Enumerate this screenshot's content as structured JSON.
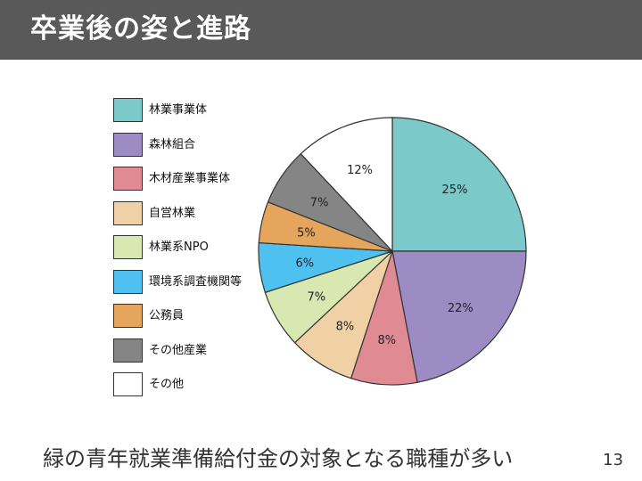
{
  "slide": {
    "title": "卒業後の姿と進路",
    "caption": "緑の青年就業準備給付金の対象となる職種が多い",
    "page_number": "13"
  },
  "chart_data": {
    "type": "pie",
    "title": "",
    "slices": [
      {
        "label": "林業事業体",
        "value": 25,
        "display": "25%",
        "color": "#7cc9c9"
      },
      {
        "label": "森林組合",
        "value": 22,
        "display": "22%",
        "color": "#9d8cc4"
      },
      {
        "label": "木材産業事業体",
        "value": 8,
        "display": "8%",
        "color": "#e08a94"
      },
      {
        "label": "自営林業",
        "value": 8,
        "display": "8%",
        "color": "#f0d1a6"
      },
      {
        "label": "林業系NPO",
        "value": 7,
        "display": "7%",
        "color": "#d7e8b0"
      },
      {
        "label": "環境系調査機関等",
        "value": 6,
        "display": "6%",
        "color": "#4fc1f0"
      },
      {
        "label": "公務員",
        "value": 5,
        "display": "5%",
        "color": "#e6a55c"
      },
      {
        "label": "その他産業",
        "value": 7,
        "display": "7%",
        "color": "#858585"
      },
      {
        "label": "その他",
        "value": 12,
        "display": "12%",
        "color": "#ffffff"
      }
    ],
    "legend_position": "left"
  }
}
